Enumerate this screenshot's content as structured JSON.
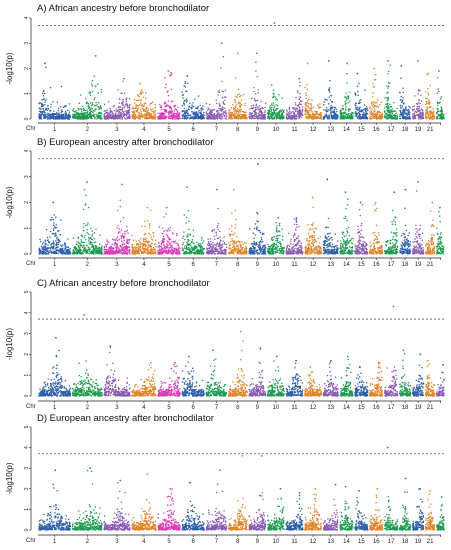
{
  "colors": [
    "#2e5fa8",
    "#1e9a50",
    "#8a5bb0",
    "#e0852a",
    "#d93ab8"
  ],
  "threshold_color": "#555555",
  "chromosome_tick_labels": [
    "Chr",
    "1",
    "2",
    "3",
    "4",
    "5",
    "6",
    "7",
    "8",
    "9",
    "10",
    "11",
    "12",
    "13",
    "14",
    "15",
    "16",
    "17",
    "18",
    "19",
    "21"
  ],
  "chart_data": [
    {
      "type": "scatter",
      "title": "A) African ancestry before bronchodilator",
      "ylabel": "-log10(p)",
      "ylim": [
        0,
        4
      ],
      "yticks": [
        "0",
        "1",
        "2",
        "3",
        "4"
      ],
      "threshold": 3.7,
      "chromosome_peaks": [
        2.2,
        2.5,
        1.6,
        1.4,
        1.9,
        1.7,
        3.0,
        2.6,
        2.6,
        3.8,
        1.6,
        2.2,
        2.3,
        2.2,
        1.8,
        2.0,
        2.3,
        2.1,
        2.3,
        1.8,
        1.9
      ],
      "chromosome_colors": [
        0,
        1,
        2,
        3,
        4,
        0,
        2,
        3,
        2,
        1,
        2,
        3,
        0,
        1,
        0,
        3,
        1,
        0,
        2,
        3,
        1
      ]
    },
    {
      "type": "scatter",
      "title": "B) European ancestry after bronchodilator",
      "ylabel": "-log10(p)",
      "ylim": [
        0,
        4
      ],
      "yticks": [
        "0",
        "1",
        "2",
        "3",
        "4"
      ],
      "threshold": 3.7,
      "chromosome_peaks": [
        2.0,
        2.8,
        2.7,
        1.8,
        1.8,
        2.6,
        2.5,
        2.5,
        3.5,
        1.4,
        1.4,
        2.2,
        2.9,
        2.4,
        2.0,
        2.0,
        2.4,
        2.5,
        2.8,
        2.0,
        1.8
      ],
      "chromosome_colors": [
        0,
        1,
        4,
        3,
        4,
        1,
        2,
        3,
        0,
        1,
        2,
        3,
        0,
        1,
        2,
        3,
        1,
        0,
        2,
        3,
        1
      ]
    },
    {
      "type": "scatter",
      "title": "C) African ancestry before bronchodilator",
      "ylabel": "-log10(p)",
      "ylim": [
        0,
        5
      ],
      "yticks": [
        "0",
        "1",
        "2",
        "3",
        "4",
        "5"
      ],
      "threshold": 3.7,
      "chromosome_peaks": [
        2.8,
        3.9,
        2.4,
        1.6,
        1.6,
        1.9,
        2.2,
        3.1,
        2.3,
        1.9,
        1.7,
        1.4,
        1.7,
        1.9,
        1.4,
        1.6,
        4.3,
        2.2,
        2.0,
        1.7,
        1.5
      ],
      "chromosome_colors": [
        0,
        1,
        2,
        3,
        4,
        0,
        1,
        3,
        2,
        1,
        0,
        3,
        2,
        1,
        0,
        3,
        2,
        1,
        0,
        3,
        2
      ]
    },
    {
      "type": "scatter",
      "title": "D) European ancestry after bronchodilator",
      "ylabel": "-log10(p)",
      "ylim": [
        0,
        5
      ],
      "yticks": [
        "0",
        "1",
        "2",
        "3",
        "4",
        "5"
      ],
      "threshold": 3.7,
      "chromosome_peaks": [
        2.9,
        3.0,
        2.4,
        2.7,
        2.0,
        2.3,
        2.9,
        3.6,
        3.6,
        2.0,
        1.8,
        2.0,
        2.2,
        2.1,
        1.9,
        2.0,
        4.0,
        2.5,
        2.0,
        1.9,
        1.6
      ],
      "chromosome_colors": [
        0,
        1,
        2,
        3,
        4,
        0,
        2,
        3,
        2,
        1,
        0,
        3,
        2,
        1,
        0,
        3,
        1,
        1,
        0,
        3,
        1
      ]
    }
  ]
}
